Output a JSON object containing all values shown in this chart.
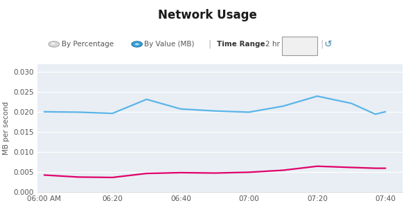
{
  "title": "Network Usage",
  "ylabel": "MB per second",
  "background_color": "#ffffff",
  "plot_bg_color": "#e8eef4",
  "grid_color": "#ffffff",
  "x_ticks": [
    "06:00 AM",
    "06:20",
    "06:40",
    "07:00",
    "07:20",
    "07:40"
  ],
  "blue_line": {
    "color": "#5ab4e8",
    "x": [
      0,
      10,
      20,
      30,
      40,
      50,
      60,
      70,
      80,
      90,
      97,
      100
    ],
    "values": [
      0.0201,
      0.02,
      0.0197,
      0.0232,
      0.0208,
      0.0203,
      0.02,
      0.0215,
      0.024,
      0.0222,
      0.0195,
      0.0201
    ]
  },
  "pink_line": {
    "color": "#e0006a",
    "x": [
      0,
      10,
      20,
      30,
      40,
      50,
      60,
      70,
      80,
      90,
      97,
      100
    ],
    "values": [
      0.0043,
      0.0038,
      0.0037,
      0.0047,
      0.0049,
      0.0048,
      0.005,
      0.0055,
      0.0065,
      0.0062,
      0.006,
      0.006
    ]
  },
  "ylim": [
    0,
    0.032
  ],
  "yticks": [
    0.0,
    0.005,
    0.01,
    0.015,
    0.02,
    0.025,
    0.03
  ],
  "xlim": [
    -2,
    105
  ],
  "figsize": [
    5.99,
    3.2
  ],
  "dpi": 100
}
